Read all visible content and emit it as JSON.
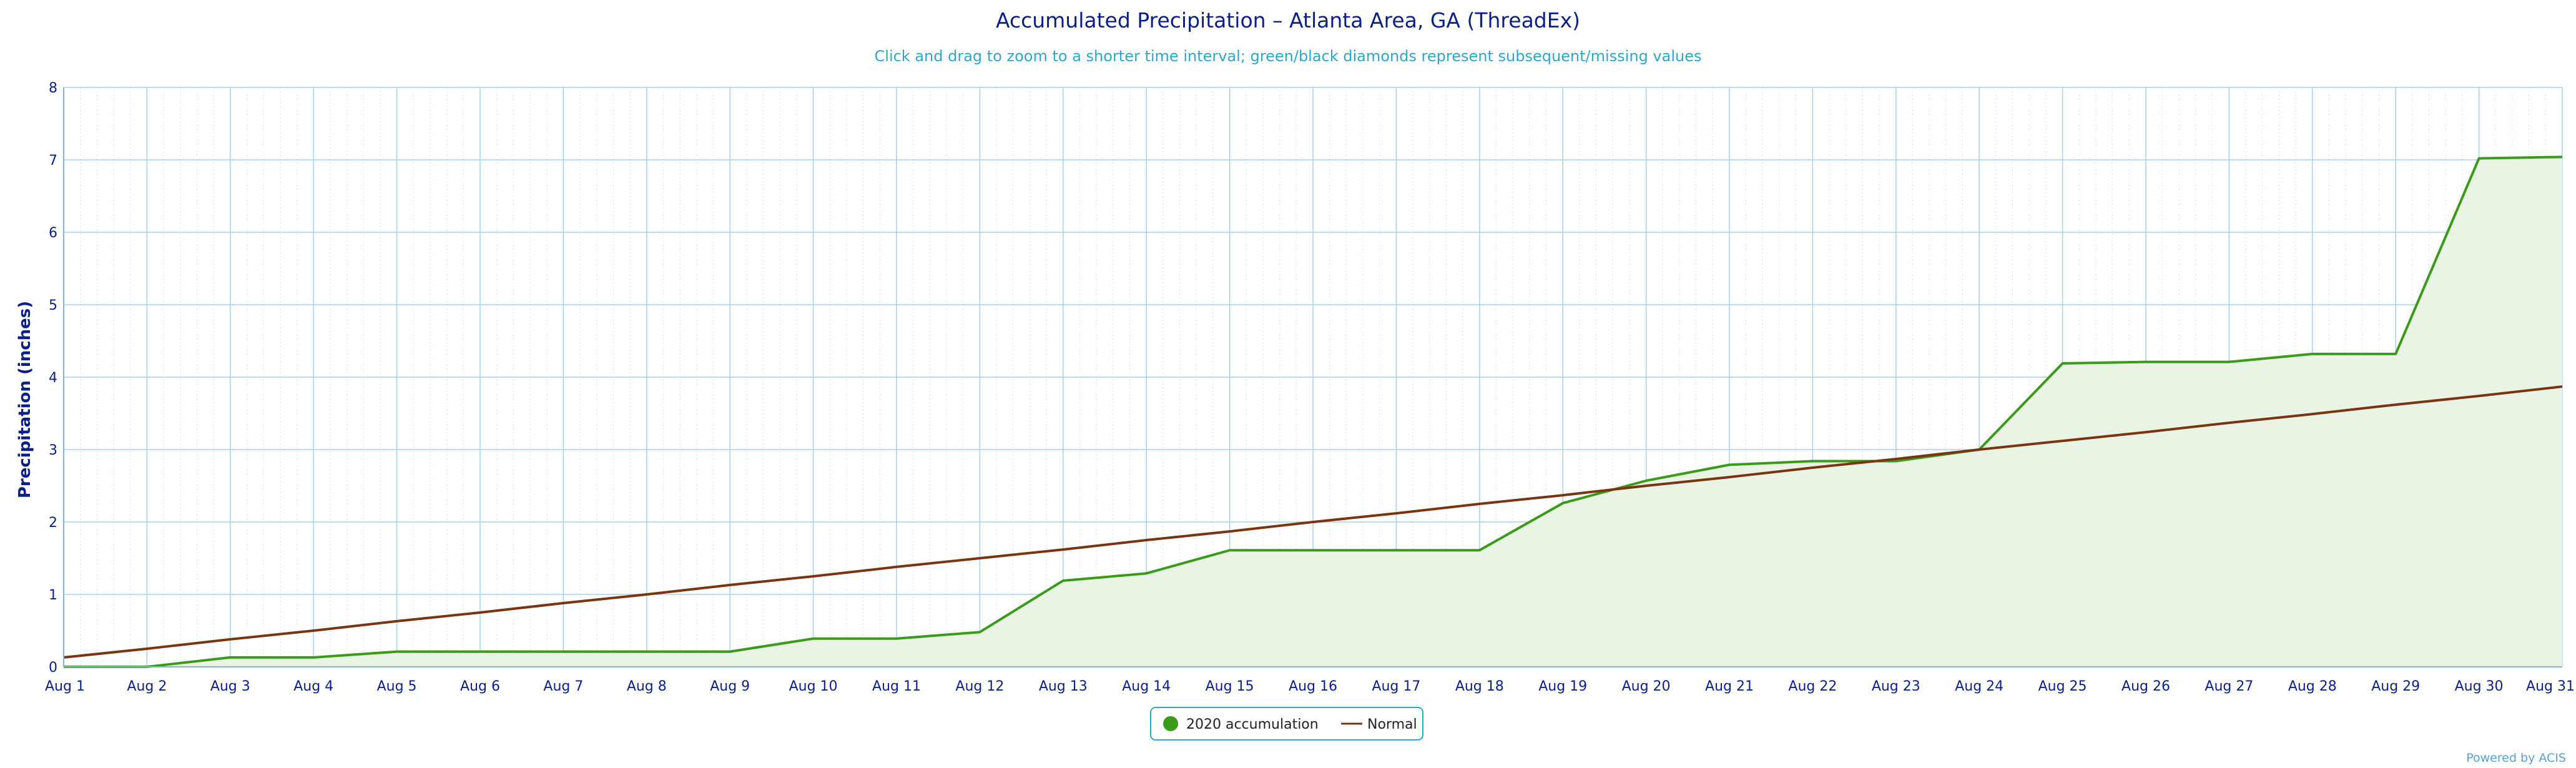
{
  "chart_data": {
    "type": "line",
    "title": "Accumulated Precipitation – Atlanta Area, GA (ThreadEx)",
    "subtitle": "Click and drag to zoom to a shorter time interval; green/black diamonds represent subsequent/missing values",
    "xlabel": "",
    "ylabel": "Precipitation (inches)",
    "ylim": [
      0,
      8
    ],
    "yticks": [
      "0",
      "1",
      "2",
      "3",
      "4",
      "5",
      "6",
      "7",
      "8"
    ],
    "categories": [
      "Aug 1",
      "Aug 2",
      "Aug 3",
      "Aug 4",
      "Aug 5",
      "Aug 6",
      "Aug 7",
      "Aug 8",
      "Aug 9",
      "Aug 10",
      "Aug 11",
      "Aug 12",
      "Aug 13",
      "Aug 14",
      "Aug 15",
      "Aug 16",
      "Aug 17",
      "Aug 18",
      "Aug 19",
      "Aug 20",
      "Aug 21",
      "Aug 22",
      "Aug 23",
      "Aug 24",
      "Aug 25",
      "Aug 26",
      "Aug 27",
      "Aug 28",
      "Aug 29",
      "Aug 30",
      "Aug 31"
    ],
    "grid": true,
    "legend_position": "bottom-center",
    "series": [
      {
        "name": "2020 accumulation",
        "color": "#3a9a1a",
        "fill": "#eaf4e4",
        "values": [
          0.0,
          0.0,
          0.13,
          0.13,
          0.21,
          0.21,
          0.21,
          0.21,
          0.21,
          0.39,
          0.39,
          0.48,
          1.19,
          1.29,
          1.61,
          1.61,
          1.61,
          1.61,
          2.26,
          2.57,
          2.79,
          2.84,
          2.84,
          3.0,
          4.19,
          4.21,
          4.21,
          4.32,
          4.32,
          7.02,
          7.04
        ]
      },
      {
        "name": "Normal",
        "color": "#7a3510",
        "values": [
          0.13,
          0.25,
          0.38,
          0.5,
          0.63,
          0.75,
          0.88,
          1.0,
          1.13,
          1.25,
          1.38,
          1.5,
          1.62,
          1.75,
          1.87,
          2.0,
          2.12,
          2.25,
          2.37,
          2.5,
          2.62,
          2.75,
          2.87,
          3.0,
          3.12,
          3.24,
          3.37,
          3.49,
          3.62,
          3.74,
          3.87
        ]
      }
    ]
  },
  "credit": "Powered by ACIS"
}
